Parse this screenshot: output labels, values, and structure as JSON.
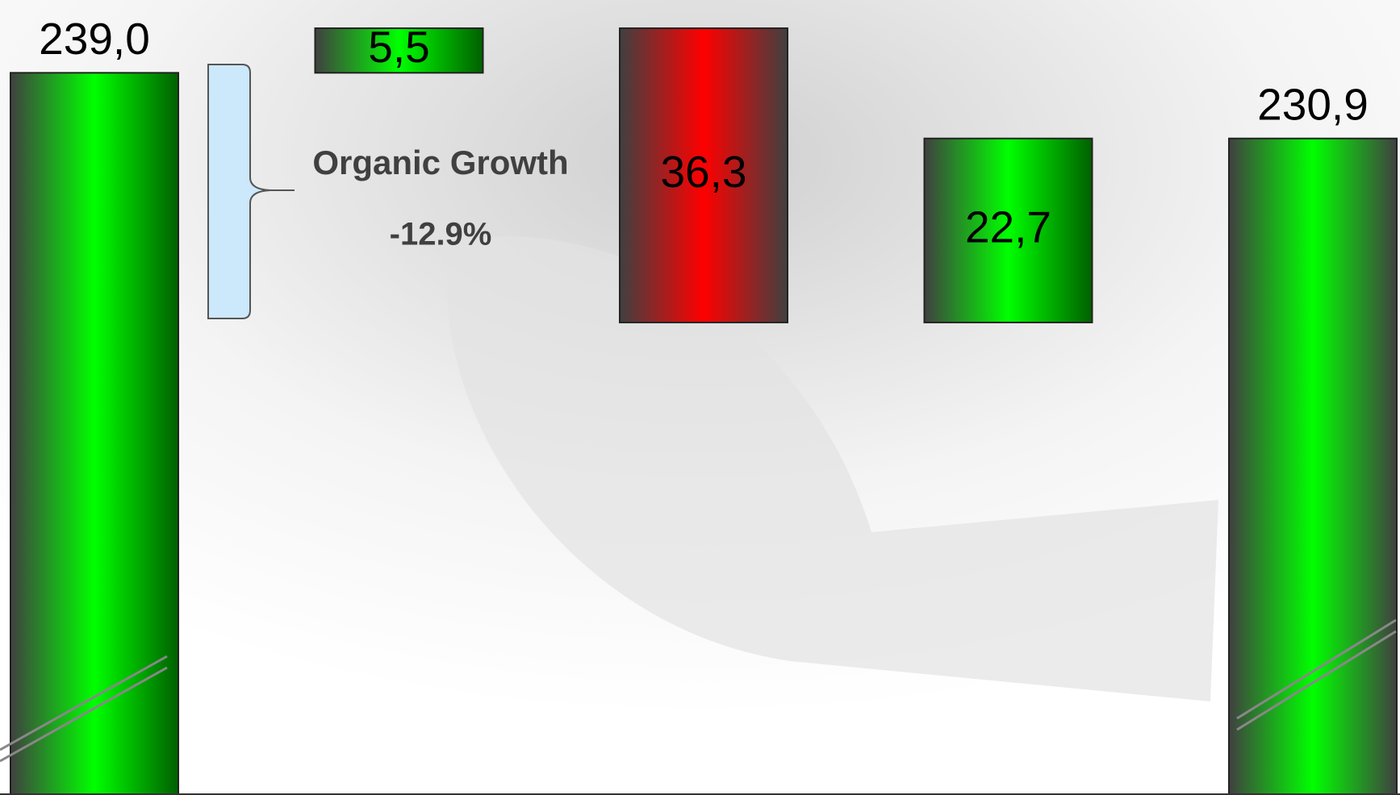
{
  "chart_data": {
    "type": "waterfall",
    "categories": [
      null,
      null,
      null,
      null,
      null
    ],
    "values": [
      239.0,
      5.5,
      -36.3,
      22.7,
      230.9
    ],
    "value_labels": [
      "239,0",
      "5,5",
      "36,3",
      "22,7",
      "230,9"
    ],
    "colors": [
      "#00ff00",
      "#00ff00",
      "#ff0000",
      "#00ff00",
      "#00ff00"
    ],
    "ylim": [
      150,
      245
    ],
    "annotations": [
      "Organic Growth",
      "-12.9%"
    ],
    "grid": false
  }
}
